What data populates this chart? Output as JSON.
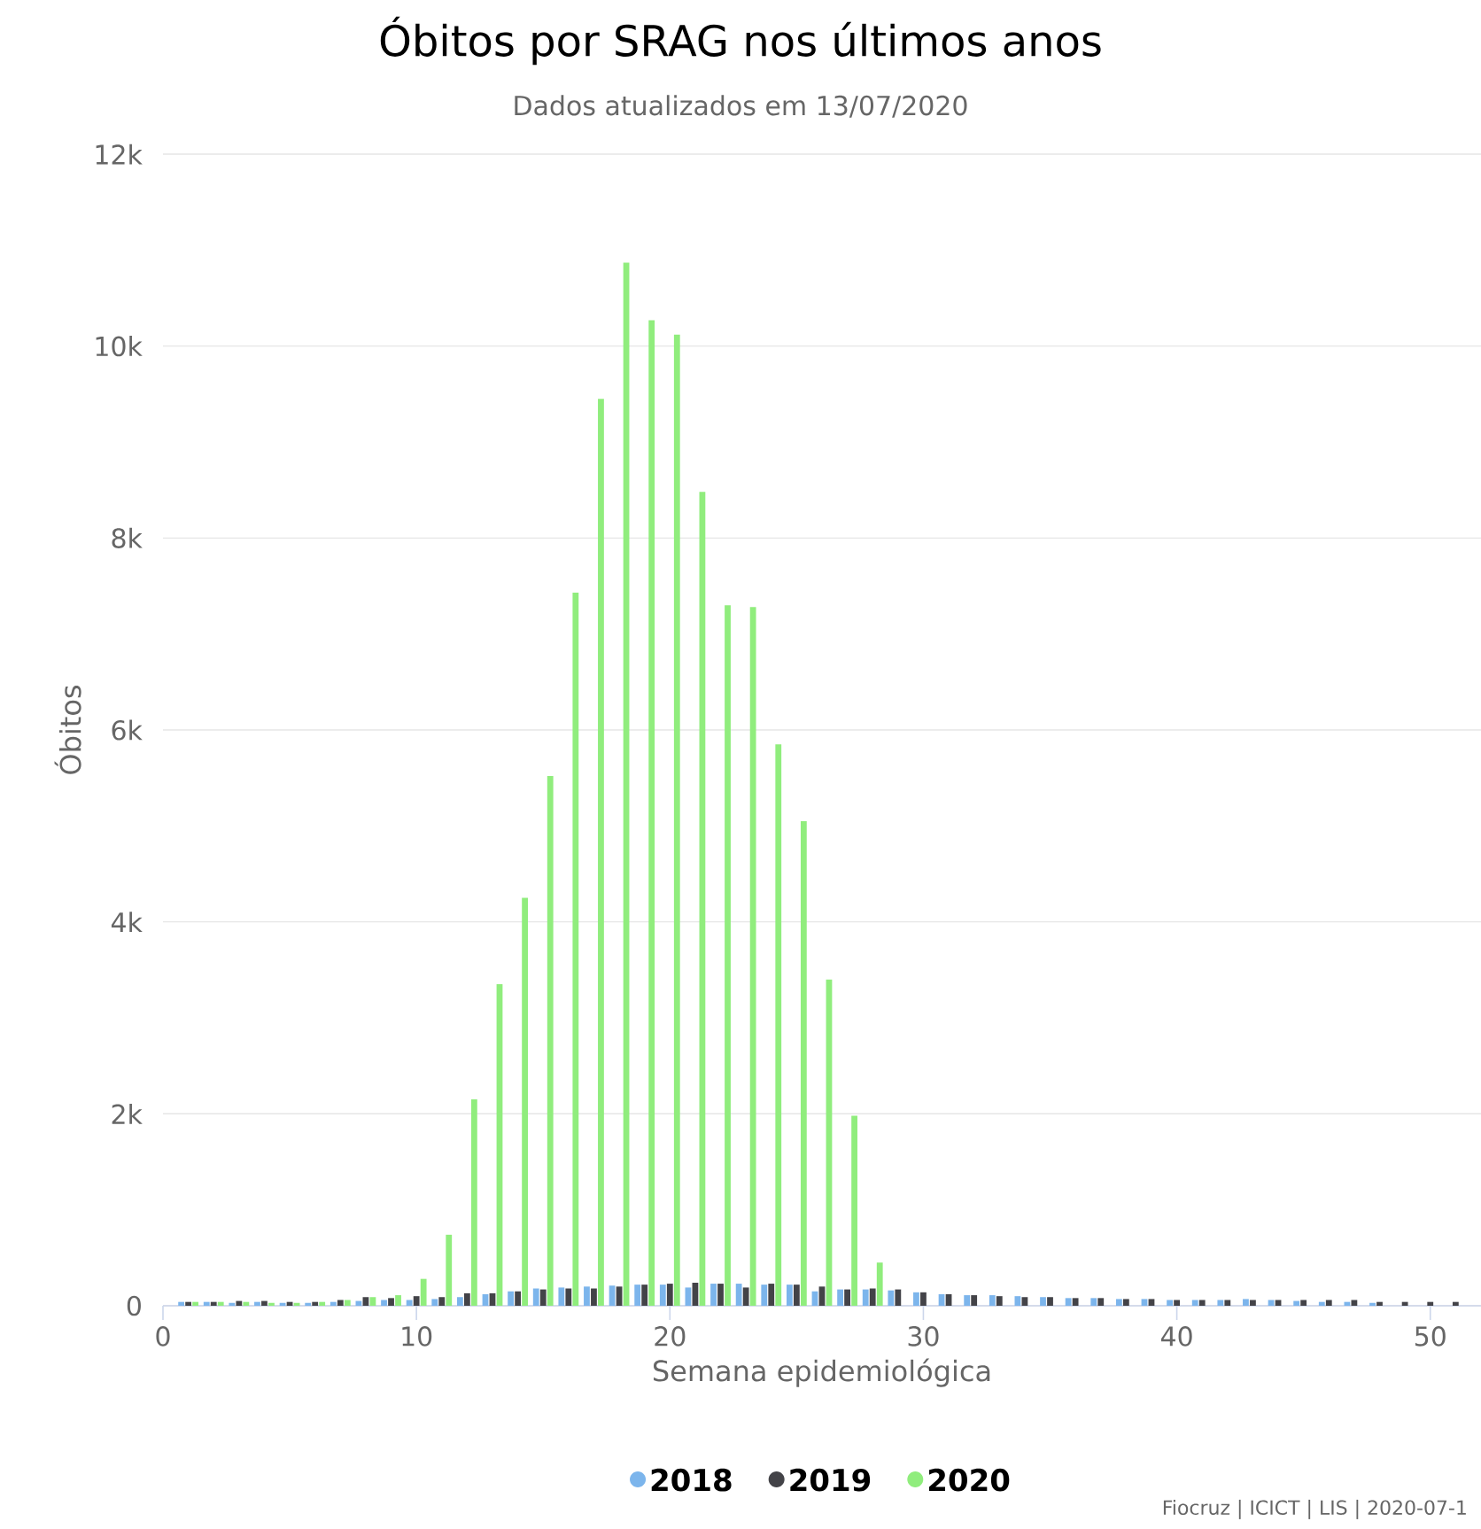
{
  "chart_data": {
    "type": "bar",
    "title": "Óbitos por SRAG nos últimos anos",
    "subtitle": "Dados atualizados em 13/07/2020",
    "xlabel": "Semana epidemiológica",
    "ylabel": "Óbitos",
    "annotations": [
      "Fiocruz | ICICT | LIS | 2020-07-1"
    ],
    "x": [
      1,
      2,
      3,
      4,
      5,
      6,
      7,
      8,
      9,
      10,
      11,
      12,
      13,
      14,
      15,
      16,
      17,
      18,
      19,
      20,
      21,
      22,
      23,
      24,
      25,
      26,
      27,
      28,
      29,
      30,
      31,
      32,
      33,
      34,
      35,
      36,
      37,
      38,
      39,
      40,
      41,
      42,
      43,
      44,
      45,
      46,
      47,
      48,
      49,
      50,
      51
    ],
    "series": [
      {
        "name": "2018",
        "color": "#7cb5ec",
        "values": [
          40,
          40,
          30,
          40,
          30,
          30,
          40,
          50,
          60,
          60,
          70,
          90,
          120,
          150,
          180,
          190,
          200,
          210,
          220,
          220,
          190,
          230,
          230,
          220,
          220,
          150,
          170,
          170,
          160,
          140,
          120,
          110,
          110,
          100,
          90,
          80,
          80,
          70,
          70,
          60,
          60,
          60,
          70,
          60,
          50,
          40,
          40,
          30,
          null,
          null,
          null
        ]
      },
      {
        "name": "2019",
        "color": "#434348",
        "values": [
          40,
          40,
          50,
          50,
          40,
          40,
          60,
          90,
          80,
          100,
          90,
          130,
          130,
          150,
          170,
          180,
          180,
          200,
          220,
          230,
          240,
          230,
          190,
          230,
          220,
          200,
          170,
          180,
          170,
          140,
          120,
          110,
          100,
          90,
          90,
          80,
          80,
          70,
          70,
          60,
          60,
          60,
          60,
          60,
          60,
          60,
          60,
          40,
          40,
          40,
          40
        ]
      },
      {
        "name": "2020",
        "color": "#90ed7d",
        "values": [
          40,
          40,
          40,
          30,
          30,
          40,
          60,
          90,
          110,
          280,
          740,
          2150,
          3350,
          4250,
          5520,
          7430,
          9450,
          10870,
          10270,
          10120,
          8480,
          7300,
          7280,
          5850,
          5050,
          3400,
          1980,
          450,
          null,
          null,
          null,
          null,
          null,
          null,
          null,
          null,
          null,
          null,
          null,
          null,
          null,
          null,
          null,
          null,
          null,
          null,
          null,
          null,
          null,
          null,
          null
        ]
      }
    ],
    "xlim": [
      0,
      52
    ],
    "xticks": [
      0,
      10,
      20,
      30,
      40,
      50
    ],
    "ylim": [
      0,
      12000
    ],
    "yticks": [
      {
        "value": 0,
        "label": "0"
      },
      {
        "value": 2000,
        "label": "2k"
      },
      {
        "value": 4000,
        "label": "4k"
      },
      {
        "value": 6000,
        "label": "6k"
      },
      {
        "value": 8000,
        "label": "8k"
      },
      {
        "value": 10000,
        "label": "10k"
      },
      {
        "value": 12000,
        "label": "12k"
      }
    ],
    "grid": "y",
    "legend": "bottom"
  }
}
